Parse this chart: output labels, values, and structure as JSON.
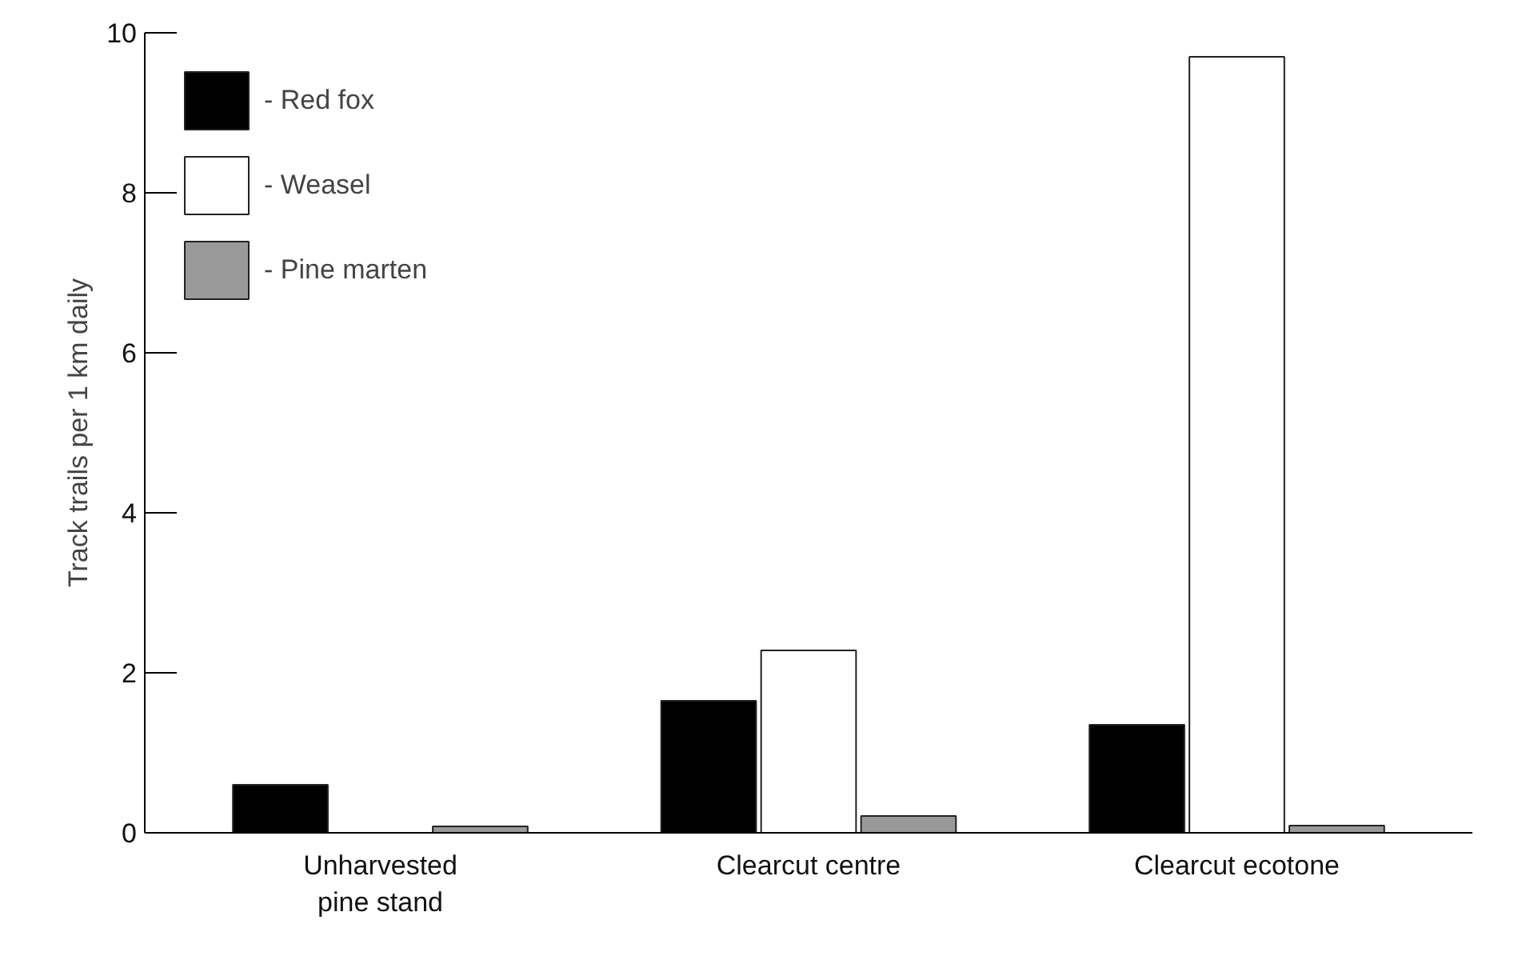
{
  "chart_data": {
    "type": "bar",
    "ylabel": "Track trails per 1 km daily",
    "categories": [
      "Unharvested\npine stand",
      "Clearcut centre",
      "Clearcut ecotone"
    ],
    "series": [
      {
        "name": "- Red fox",
        "color": "#000000",
        "values": [
          0.6,
          1.65,
          1.35
        ]
      },
      {
        "name": "- Weasel",
        "color": "#ffffff",
        "values": [
          null,
          2.28,
          9.7
        ]
      },
      {
        "name": "- Pine marten",
        "color": "#999999",
        "values": [
          0.08,
          0.21,
          0.09
        ]
      }
    ],
    "ylim": [
      0,
      10
    ],
    "yticks": [
      0,
      2,
      4,
      6,
      8,
      10
    ],
    "grid": false,
    "legend": "top left"
  }
}
